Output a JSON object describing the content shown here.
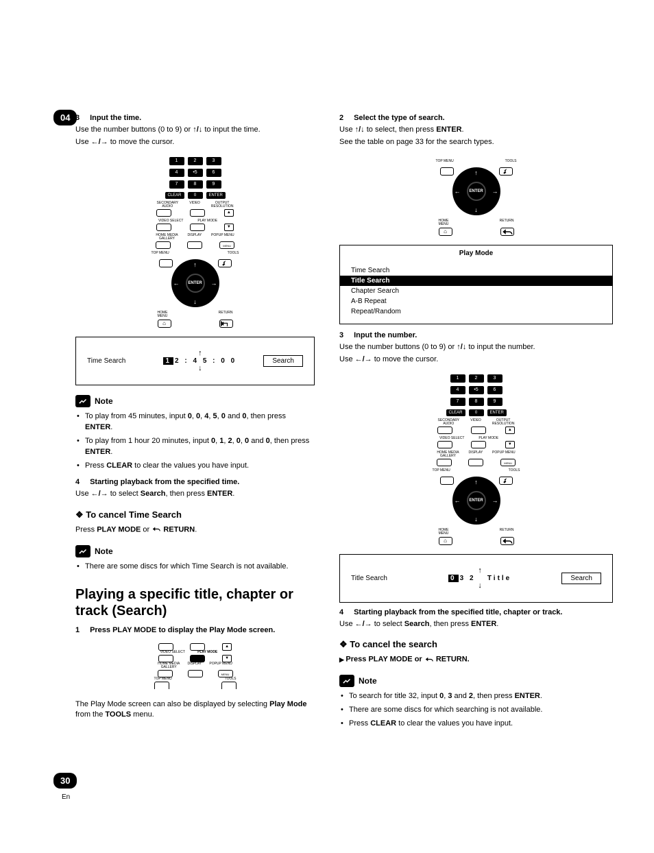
{
  "page": {
    "chapter_tab": "04",
    "number": "30",
    "lang": "En"
  },
  "left": {
    "step3": {
      "num": "3",
      "title": "Input the time.",
      "l1a": "Use the number buttons (0 to 9) or ",
      "l1b": " to input the time.",
      "l2a": "Use ",
      "l2b": " to move the cursor."
    },
    "remote": {
      "keys": [
        "1",
        "2",
        "3",
        "4",
        "•5",
        "6",
        "7",
        "8",
        "9"
      ],
      "clear": "CLEAR",
      "zero": "0",
      "enter": "ENTER",
      "sec_audio": "SECONDARY",
      "sec_audio2": "AUDIO",
      "video": "VIDEO",
      "out_res": "OUTPUT",
      "out_res2": "RESOLUTION",
      "video_select": "VIDEO SELECT",
      "play_mode": "PLAY MODE",
      "home_media": "HOME MEDIA",
      "home_media2": "GALLERY",
      "display": "DISPLAY",
      "popup": "POPUP MENU",
      "top_menu": "TOP MENU",
      "tools": "TOOLS",
      "enter_center": "ENTER",
      "home_menu": "HOME",
      "home_menu2": "MENU",
      "return": "RETURN"
    },
    "time_panel": {
      "label": "Time Search",
      "d1": "1",
      "rest": "2 : 4 5 : 0 0",
      "btn": "Search"
    },
    "note1": {
      "title": "Note",
      "b1a": "To play from 45 minutes, input ",
      "b1b": ", then press ",
      "seq1": [
        "0",
        "0",
        "4",
        "5",
        "0",
        "0"
      ],
      "enter": "ENTER",
      "b2a": "To play from 1 hour 20 minutes, input ",
      "seq2": [
        "0",
        "1",
        "2",
        "0",
        "0",
        "0"
      ],
      "b2b": ", then press ",
      "b3a": "Press ",
      "clear": "CLEAR",
      "b3b": " to clear the values you have input."
    },
    "step4": {
      "num": "4",
      "title": "Starting playback from the specified time.",
      "l1a": "Use ",
      "l1b": " to select ",
      "search": "Search",
      "l1c": ", then press ",
      "enter": "ENTER"
    },
    "cancel_h": "To cancel Time Search",
    "cancel_line": {
      "a": "Press ",
      "pm": "PLAY MODE",
      "b": " or ",
      "ret": "RETURN",
      "c": "."
    },
    "note2": {
      "title": "Note",
      "b1": "There are some discs for which Time Search is not available."
    },
    "h2": "Playing a specific title, chapter or track (Search)",
    "step1": {
      "num": "1",
      "title": "Press PLAY MODE to display the Play Mode screen."
    },
    "small_remote": {
      "video_select": "VIDEO SELECT",
      "play_mode": "PLAY MODE",
      "home_media": "HOME MEDIA",
      "home_media2": "GALLERY",
      "display": "DISPLAY",
      "popup": "POPUP MENU",
      "top_menu": "TOP MENU",
      "tools": "TOOLS"
    },
    "pm_desc": {
      "a": "The Play Mode screen can also be displayed by selecting ",
      "pm": "Play Mode",
      "b": " from the ",
      "tools": "TOOLS",
      "c": " menu."
    }
  },
  "right": {
    "step2": {
      "num": "2",
      "title": "Select the type of search.",
      "l1a": "Use ",
      "l1b": " to select, then press ",
      "enter": "ENTER",
      "l2": "See the table on page 33 for the search types."
    },
    "dpad_remote": {
      "top_menu": "TOP MENU",
      "tools": "TOOLS",
      "enter": "ENTER",
      "home_menu": "HOME",
      "home_menu2": "MENU",
      "return": "RETURN"
    },
    "pm_panel": {
      "title": "Play Mode",
      "items": [
        "Time Search",
        "Title Search",
        "Chapter Search",
        "A-B Repeat",
        "Repeat/Random"
      ],
      "sel_index": 1
    },
    "step3": {
      "num": "3",
      "title": "Input the number.",
      "l1a": "Use the number buttons (0 to 9) or ",
      "l1b": " to input the number.",
      "l2a": "Use ",
      "l2b": " to move the cursor."
    },
    "title_panel": {
      "label": "Title Search",
      "d1": "0",
      "rest": "3 2",
      "suffix": "Title",
      "btn": "Search"
    },
    "step4": {
      "num": "4",
      "title": "Starting playback from the specified title, chapter or track.",
      "l1a": "Use ",
      "l1b": " to select ",
      "search": "Search",
      "l1c": ", then press ",
      "enter": "ENTER"
    },
    "cancel_h": "To cancel the search",
    "cancel_line": {
      "a": "Press PLAY MODE or ",
      "ret": "RETURN",
      "b": "."
    },
    "note": {
      "title": "Note",
      "b1a": "To search for title 32, input ",
      "seq": [
        "0",
        "3",
        "2"
      ],
      "b1b": ", then press ",
      "enter": "ENTER",
      "b2": "There are some discs for which searching is not available.",
      "b3a": "Press ",
      "clear": "CLEAR",
      "b3b": " to clear the values you have input."
    }
  },
  "glyphs": {
    "up": "↑",
    "down": "↓",
    "left": "←",
    "right": "→",
    "updown": "↑/↓",
    "leftright": "←/→"
  }
}
